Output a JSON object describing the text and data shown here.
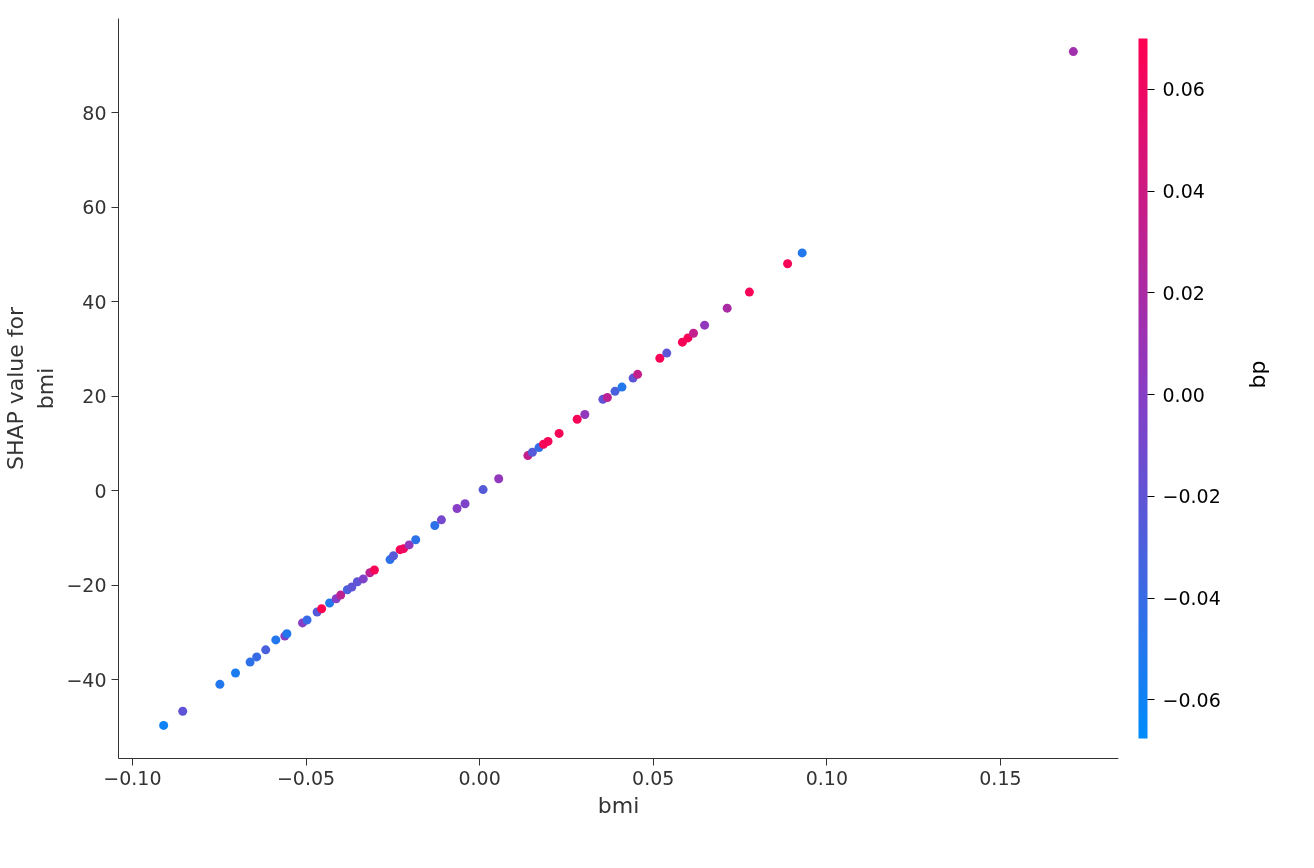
{
  "chart_data": {
    "type": "scatter",
    "xlabel": "bmi",
    "ylabel": "SHAP value for\nbmi",
    "clabel": "bp",
    "x": [
      -0.091,
      -0.0855,
      -0.0748,
      -0.0703,
      -0.0661,
      -0.0642,
      -0.0616,
      -0.0587,
      -0.0561,
      -0.0555,
      -0.051,
      -0.0497,
      -0.0468,
      -0.0455,
      -0.0432,
      -0.0413,
      -0.04,
      -0.0381,
      -0.0368,
      -0.0352,
      -0.0335,
      -0.0316,
      -0.0303,
      -0.0258,
      -0.0248,
      -0.0229,
      -0.0219,
      -0.0203,
      -0.0184,
      -0.0129,
      -0.011,
      -0.0065,
      -0.0042,
      0.001,
      0.0055,
      0.0139,
      0.0152,
      0.0171,
      0.0184,
      0.0197,
      0.0229,
      0.0281,
      0.0303,
      0.0355,
      0.0368,
      0.039,
      0.041,
      0.0442,
      0.0455,
      0.0519,
      0.0539,
      0.0584,
      0.06,
      0.0616,
      0.0648,
      0.0713,
      0.0777,
      0.0887,
      0.0929,
      0.171
    ],
    "values": [
      -49.7,
      -46.7,
      -41.0,
      -38.6,
      -36.3,
      -35.2,
      -33.7,
      -31.6,
      -30.8,
      -30.3,
      -28.0,
      -27.4,
      -25.7,
      -25.0,
      -23.8,
      -22.9,
      -22.1,
      -21.0,
      -20.4,
      -19.3,
      -18.7,
      -17.4,
      -16.8,
      -14.6,
      -13.8,
      -12.5,
      -12.3,
      -11.5,
      -10.4,
      -7.4,
      -6.2,
      -3.8,
      -2.8,
      0.2,
      2.5,
      7.4,
      8.1,
      9.1,
      9.8,
      10.4,
      12.1,
      15.1,
      16.1,
      19.3,
      19.7,
      21.0,
      21.9,
      23.8,
      24.6,
      28.0,
      29.1,
      31.4,
      32.3,
      33.3,
      35.0,
      38.6,
      42.0,
      48.0,
      50.3,
      92.9
    ],
    "cvalues": [
      -0.06,
      -0.02,
      -0.05,
      -0.055,
      -0.045,
      -0.04,
      -0.03,
      -0.05,
      0.0,
      -0.05,
      0.0,
      -0.04,
      -0.025,
      0.07,
      -0.05,
      0.0,
      0.03,
      -0.03,
      -0.02,
      -0.02,
      -0.005,
      0.03,
      0.065,
      -0.045,
      -0.025,
      0.065,
      0.06,
      0.005,
      -0.045,
      -0.045,
      -0.01,
      0.0,
      -0.005,
      -0.025,
      0.005,
      0.035,
      -0.025,
      -0.04,
      0.065,
      0.065,
      0.065,
      0.065,
      0.005,
      -0.02,
      0.03,
      -0.03,
      -0.05,
      -0.02,
      0.035,
      0.065,
      -0.02,
      0.065,
      0.065,
      0.035,
      0.005,
      0.02,
      0.065,
      0.065,
      -0.05,
      0.015
    ],
    "marker": "circle",
    "xlim": [
      -0.104,
      0.184
    ],
    "ylim": [
      -56.7,
      99.9
    ],
    "xticks": [
      {
        "value": -0.1,
        "label": "−0.10"
      },
      {
        "value": -0.05,
        "label": "−0.05"
      },
      {
        "value": 0.0,
        "label": "0.00"
      },
      {
        "value": 0.05,
        "label": "0.05"
      },
      {
        "value": 0.1,
        "label": "0.10"
      },
      {
        "value": 0.15,
        "label": "0.15"
      }
    ],
    "yticks": [
      {
        "value": -40,
        "label": "−40"
      },
      {
        "value": -20,
        "label": "−20"
      },
      0,
      20,
      40,
      60,
      80
    ],
    "clim": [
      -0.0676,
      0.07
    ],
    "cticks": [
      {
        "value": -0.06,
        "label": "−0.06"
      },
      {
        "value": -0.04,
        "label": "−0.04"
      },
      {
        "value": -0.02,
        "label": "−0.02"
      },
      {
        "value": 0.0,
        "label": "0.00"
      },
      {
        "value": 0.02,
        "label": "0.02"
      },
      {
        "value": 0.04,
        "label": "0.04"
      },
      {
        "value": 0.06,
        "label": "0.06"
      }
    ],
    "grid": false
  }
}
